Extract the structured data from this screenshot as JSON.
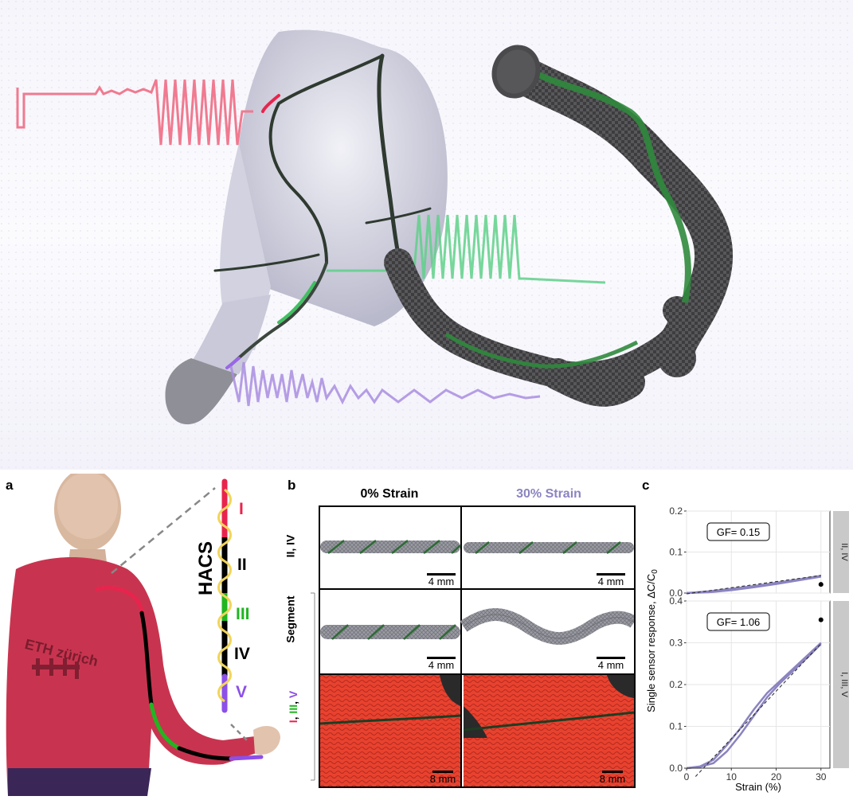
{
  "panels": {
    "a": {
      "label": "a",
      "shirt_brand": "ETH zürich",
      "hacs_label": "HACS",
      "segments": [
        {
          "label": "I",
          "color": "#e8244d"
        },
        {
          "label": "II",
          "color": "#000000"
        },
        {
          "label": "III",
          "color": "#21b521"
        },
        {
          "label": "IV",
          "color": "#000000"
        },
        {
          "label": "V",
          "color": "#8c4fe8"
        }
      ]
    },
    "b": {
      "label": "b",
      "col_headers": [
        "0% Strain",
        "30% Strain"
      ],
      "row_labels": {
        "even": "II, IV",
        "odd_parts": [
          "I",
          ", ",
          "III",
          ", ",
          "V"
        ]
      },
      "segment_label": "Segment",
      "scale_bars": [
        "4 mm",
        "4 mm",
        "4 mm",
        "4 mm",
        "8 mm",
        "8 mm"
      ]
    },
    "c": {
      "label": "c"
    }
  },
  "colors": {
    "strain30": "#8b84c0",
    "shirt": "#c8344f",
    "fabric": "#e83b2e",
    "strip": "#c9c9c9"
  },
  "chart_data": [
    {
      "type": "line",
      "facet": "II, IV",
      "ylabel": "Single sensor response, ΔC/C",
      "ylabel_subscript": "0",
      "ylim": [
        0,
        0.2
      ],
      "yticks": [
        "0.0",
        "0.1",
        "0.2"
      ],
      "annotation": "GF= 0.15",
      "series": [
        {
          "name": "loading",
          "x": [
            0,
            5,
            10,
            15,
            20,
            25,
            30
          ],
          "y": [
            0.0,
            0.004,
            0.01,
            0.017,
            0.025,
            0.033,
            0.042
          ]
        },
        {
          "name": "unloading",
          "x": [
            0,
            5,
            10,
            15,
            20,
            25,
            30
          ],
          "y": [
            0.0,
            0.002,
            0.007,
            0.014,
            0.022,
            0.031,
            0.04
          ]
        },
        {
          "name": "fit",
          "x": [
            0,
            30
          ],
          "y": [
            -0.002,
            0.043
          ]
        }
      ],
      "points": [
        {
          "x": 30,
          "y": 0.021
        }
      ]
    },
    {
      "type": "line",
      "facet": "I, III, V",
      "xlabel": "Strain (%)",
      "xlim": [
        0,
        32
      ],
      "xticks": [
        "0",
        "10",
        "20",
        "30"
      ],
      "ylim": [
        0,
        0.4
      ],
      "yticks": [
        "0.0",
        "0.1",
        "0.2",
        "0.3",
        "0.4"
      ],
      "annotation": "GF= 1.06",
      "series": [
        {
          "name": "loading",
          "x": [
            0,
            3,
            6,
            9,
            12,
            15,
            18,
            21,
            24,
            27,
            30
          ],
          "y": [
            0.0,
            0.004,
            0.02,
            0.055,
            0.095,
            0.14,
            0.18,
            0.21,
            0.24,
            0.27,
            0.3
          ]
        },
        {
          "name": "unloading",
          "x": [
            0,
            3,
            6,
            9,
            12,
            15,
            18,
            21,
            24,
            27,
            30
          ],
          "y": [
            0.0,
            0.003,
            0.012,
            0.04,
            0.08,
            0.125,
            0.17,
            0.205,
            0.235,
            0.265,
            0.297
          ]
        },
        {
          "name": "fit",
          "x": [
            2,
            30
          ],
          "y": [
            -0.02,
            0.298
          ]
        }
      ],
      "points": [
        {
          "x": 30,
          "y": 0.355
        }
      ]
    }
  ]
}
